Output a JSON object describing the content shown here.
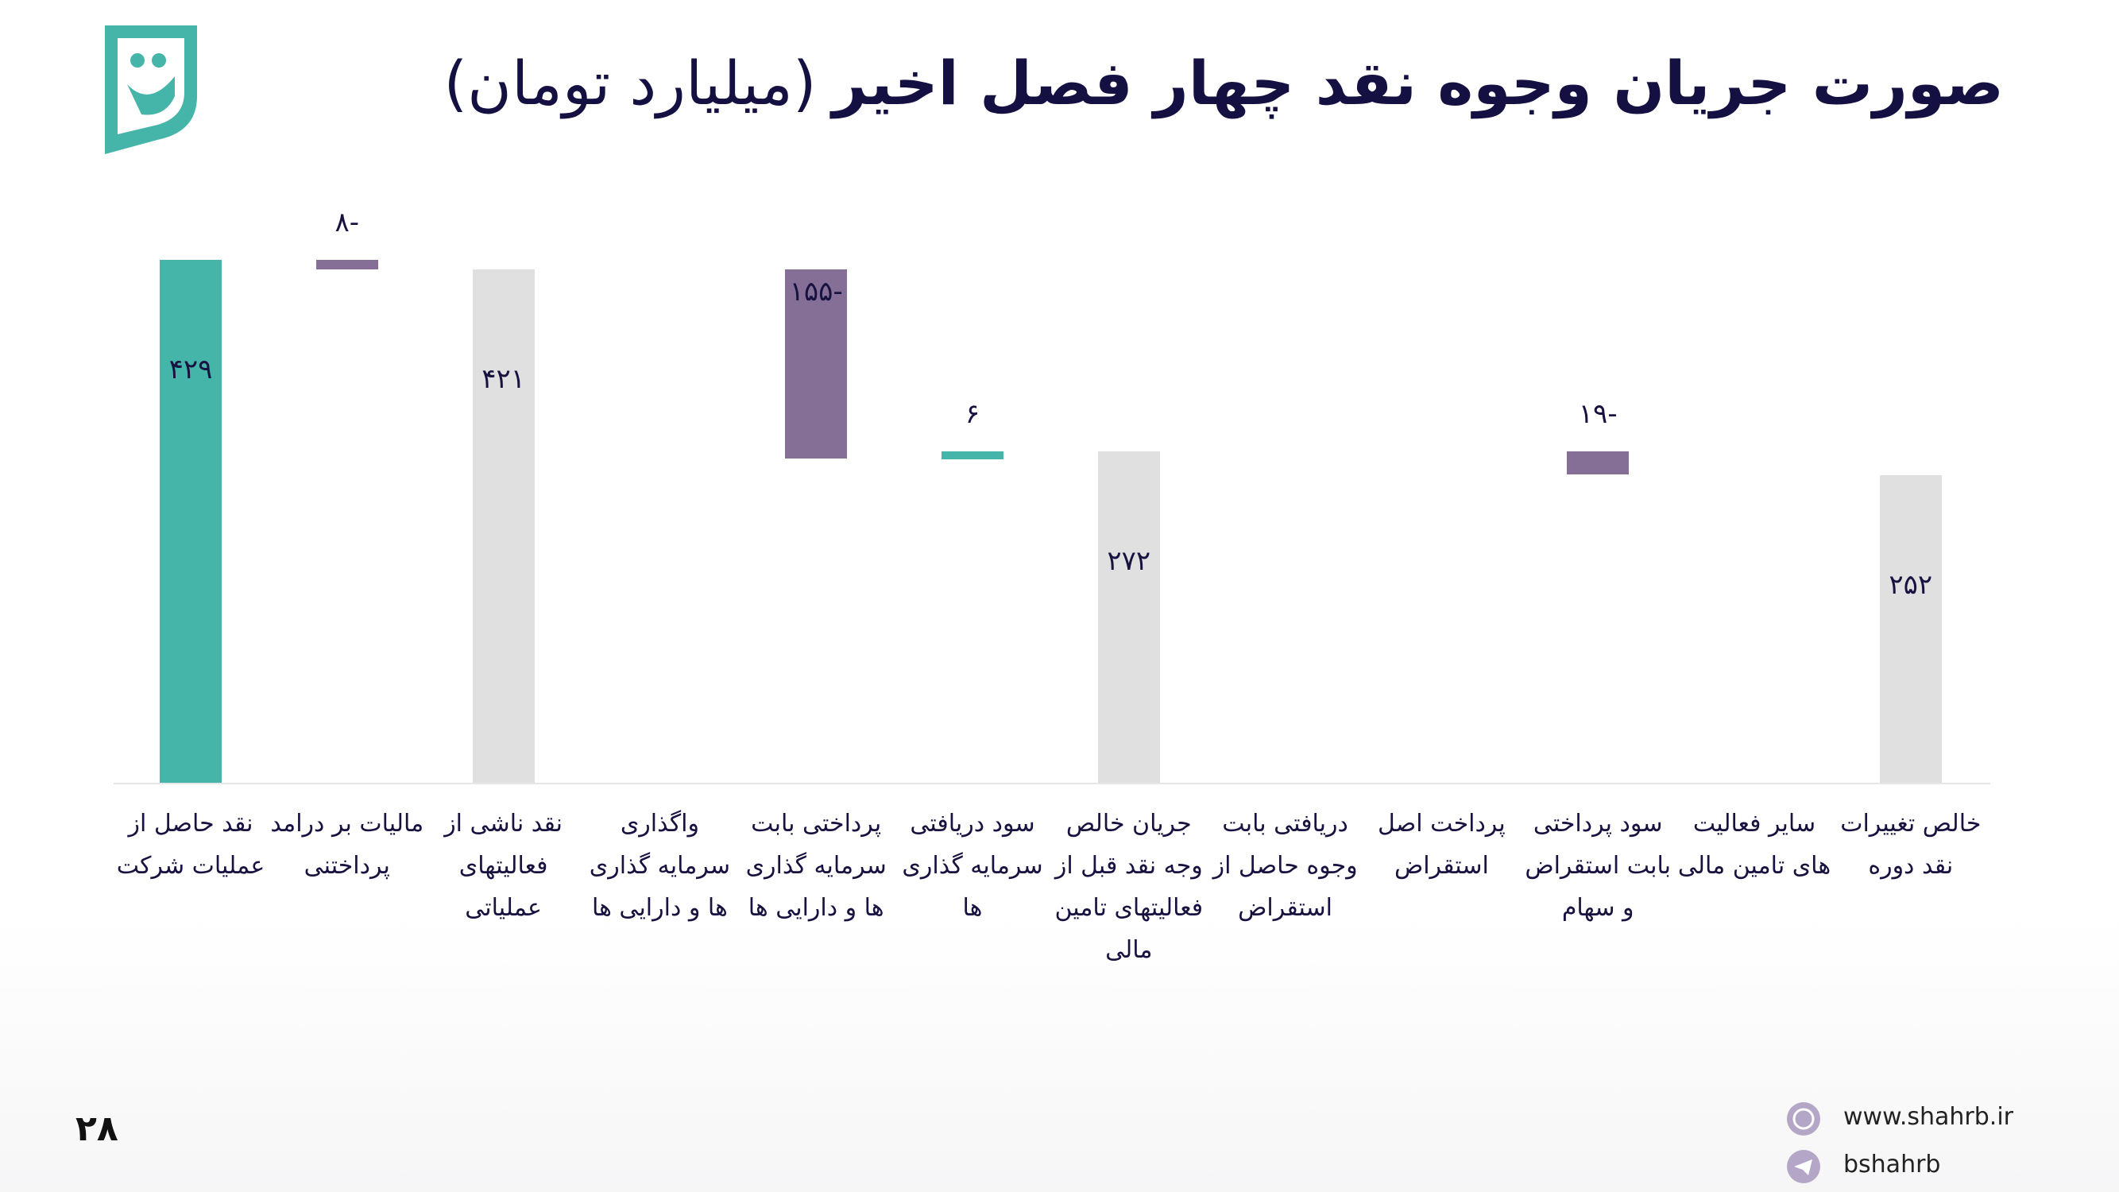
{
  "chart_data": {
    "type": "waterfall",
    "title": "صورت جریان وجوه نقد چهار فصل اخیر",
    "subtitle": "(میلیارد تومان)",
    "categories": [
      "نقد حاصل از عملیات شرکت",
      "مالیات بر درامد پرداختنی",
      "نقد  ناشی از فعالیتهای عملیاتی",
      "واگذاری سرمایه گذاری ها و دارایی ها",
      "پرداختی بابت سرمایه گذاری ها و دارایی ها",
      "سود دریافتی سرمایه گذاری ها",
      "جریان خالص وجه نقد قبل از فعالیتهای تامین مالی",
      "دریافتی بابت وجوه حاصل از استقراض",
      "پرداخت اصل استقراض",
      "سود پرداختی بابت استقراض و سهام",
      "سایر فعالیت های تامین مالی",
      "خالص تغییرات نقد دوره"
    ],
    "kinds": [
      "total",
      "delta",
      "total",
      "delta",
      "delta",
      "delta",
      "total",
      "delta",
      "delta",
      "delta",
      "delta",
      "total"
    ],
    "values": [
      429,
      -8,
      421,
      0,
      -155,
      6,
      272,
      0,
      0,
      -19,
      0,
      252
    ],
    "value_labels": [
      "۴۲۹",
      "-۸",
      "۴۲۱",
      null,
      "-۱۵۵",
      "۶",
      "۲۷۲",
      null,
      null,
      "-۱۹",
      null,
      "۲۵۲"
    ],
    "colors": [
      "#45b5aa",
      "#866f97",
      "#e0e0e0",
      "#866f97",
      "#866f97",
      "#45b5aa",
      "#e0e0e0",
      "#45b5aa",
      "#866f97",
      "#866f97",
      "#866f97",
      "#e0e0e0"
    ]
  },
  "page_number": "۲۸",
  "footer": {
    "website": "www.shahrb.ir",
    "telegram": "bshahrb"
  }
}
